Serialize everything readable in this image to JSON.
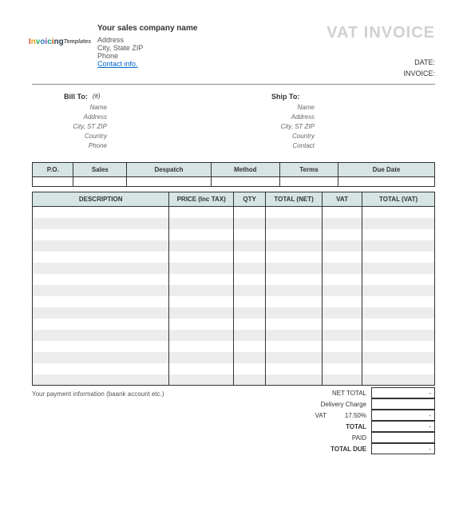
{
  "header": {
    "logo_text": "Invoicing",
    "logo_suffix": "Templates",
    "company_name": "Your sales company name",
    "address": "Address",
    "city_state_zip": "City, State ZIP",
    "phone": "Phone",
    "contact_link": "Contact info.",
    "title": "VAT INVOICE",
    "date_label": "DATE:",
    "invoice_label": "INVOICE:"
  },
  "bill_to": {
    "title": "Bill To:",
    "hash": "(#)",
    "fields": [
      "Name",
      "Address",
      "City, ST ZIP",
      "Country",
      "Phone"
    ]
  },
  "ship_to": {
    "title": "Ship To:",
    "fields": [
      "Name",
      "Address",
      "City, ST ZIP",
      "Country",
      "Contact"
    ]
  },
  "order_table": {
    "headers": [
      "P.O.",
      "Sales",
      "Despatch",
      "Method",
      "Terms",
      "Due Date"
    ]
  },
  "items_table": {
    "headers": [
      "DESCRIPTION",
      "PRICE (Inc TAX)",
      "QTY",
      "TOTAL (NET)",
      "VAT",
      "TOTAL (VAT)"
    ],
    "row_count": 16
  },
  "footer": {
    "payment_note": "Your payment information (baank account etc.)",
    "totals": [
      {
        "label": "NET TOTAL",
        "value": "-"
      },
      {
        "label": "Delivery Charge",
        "value": ""
      },
      {
        "label": "VAT",
        "pct": "17.50%",
        "value": "-"
      },
      {
        "label": "TOTAL",
        "value": "-"
      },
      {
        "label": "PAID",
        "value": ""
      },
      {
        "label": "TOTAL DUE",
        "value": "-"
      }
    ]
  },
  "styling": {
    "header_bg": "#d6e4e4",
    "stripe_bg": "#ececec",
    "border_color": "#333333",
    "title_color": "#d0d0d0",
    "link_color": "#0066cc",
    "body_font_size": 9,
    "table_font_size": 8,
    "title_font_size": 20
  }
}
